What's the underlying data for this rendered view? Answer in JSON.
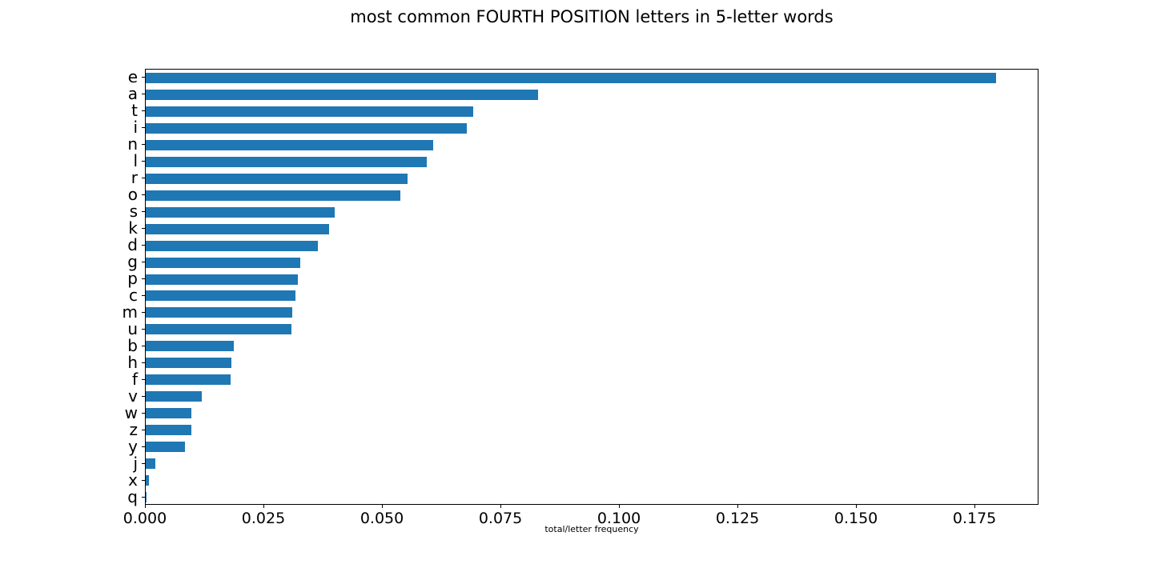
{
  "chart_data": {
    "type": "bar",
    "orientation": "horizontal",
    "title": "most common FOURTH POSITION letters in 5-letter words",
    "xlabel": "total/letter frequency",
    "ylabel": "",
    "categories": [
      "e",
      "a",
      "t",
      "i",
      "n",
      "l",
      "r",
      "o",
      "s",
      "k",
      "d",
      "g",
      "p",
      "c",
      "m",
      "u",
      "b",
      "h",
      "f",
      "v",
      "w",
      "z",
      "y",
      "j",
      "x",
      "q"
    ],
    "values": [
      0.1794,
      0.0828,
      0.0691,
      0.0678,
      0.0606,
      0.0593,
      0.0552,
      0.0537,
      0.0399,
      0.0387,
      0.0363,
      0.0326,
      0.0321,
      0.0316,
      0.0309,
      0.0307,
      0.0186,
      0.0181,
      0.0179,
      0.0119,
      0.0097,
      0.0097,
      0.0082,
      0.0021,
      0.0007,
      0.0002
    ],
    "xlim": [
      0,
      0.1885
    ],
    "xticks": {
      "values": [
        0.0,
        0.025,
        0.05,
        0.075,
        0.1,
        0.125,
        0.15,
        0.175
      ],
      "labels": [
        "0.000",
        "0.025",
        "0.050",
        "0.075",
        "0.100",
        "0.125",
        "0.150",
        "0.175"
      ]
    },
    "grid": false,
    "legend": null,
    "bar_color": "#1f77b4",
    "spine_color": "#000000"
  }
}
